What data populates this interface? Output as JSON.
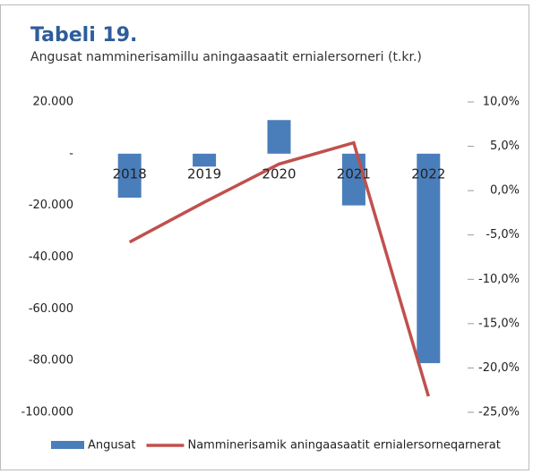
{
  "chart_data": {
    "type": "bar_line",
    "title": "Tabeli 19.",
    "subtitle": "Angusat namminerisamillu aningaasaatit ernialersorneri (t.kr.)",
    "categories": [
      "2018",
      "2019",
      "2020",
      "2021",
      "2022"
    ],
    "series": [
      {
        "name": "Angusat",
        "color": "#4a7ebb",
        "type": "bar",
        "values": [
          -17000,
          -5000,
          13000,
          -20000,
          -81000
        ]
      },
      {
        "name": "Namminerisamik aningaasaatit ernialersorneqarnerat",
        "color": "#c0504d",
        "type": "line",
        "axis": "y2",
        "values": [
          -5.8,
          -1.3,
          3.0,
          5.4,
          -23.2
        ]
      }
    ],
    "ylim": [
      -100000,
      20000
    ],
    "yticks": [
      {
        "value": -100000,
        "label": "-100.000"
      },
      {
        "value": -80000,
        "label": "-80.000"
      },
      {
        "value": -60000,
        "label": "-60.000"
      },
      {
        "value": -40000,
        "label": "-40.000"
      },
      {
        "value": -20000,
        "label": "-20.000"
      },
      {
        "value": 0,
        "label": "-"
      },
      {
        "value": 20000,
        "label": "20.000"
      }
    ],
    "y2lim": [
      -25,
      10
    ],
    "y2ticks": [
      {
        "value": -25,
        "label": "-25,0%"
      },
      {
        "value": -20,
        "label": "-20,0%"
      },
      {
        "value": -15,
        "label": "-15,0%"
      },
      {
        "value": -10,
        "label": "-10,0%"
      },
      {
        "value": -5,
        "label": "-5,0%"
      },
      {
        "value": 0,
        "label": "0,0%"
      },
      {
        "value": 5,
        "label": "5,0%"
      },
      {
        "value": 10,
        "label": "10,0%"
      }
    ],
    "grid": false,
    "legend": "bottom"
  }
}
